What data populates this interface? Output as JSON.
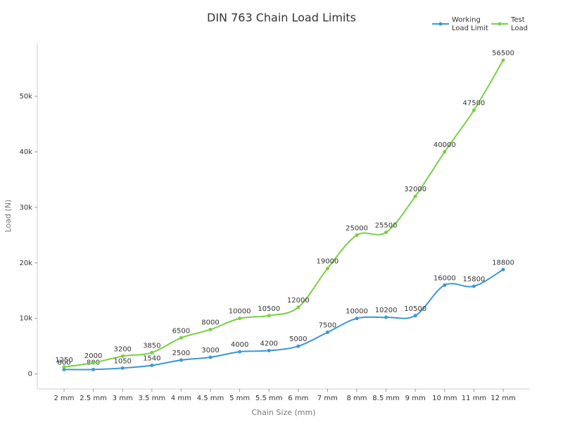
{
  "chart_data": {
    "type": "line",
    "title": "DIN 763 Chain Load Limits",
    "x_label": "Chain Size (mm)",
    "y_label": "Load (N)",
    "categories": [
      "2 mm",
      "2.5 mm",
      "3 mm",
      "3.5 mm",
      "4 mm",
      "4.5 mm",
      "5 mm",
      "5.5 mm",
      "6 mm",
      "7 mm",
      "8 mm",
      "8.5 mm",
      "9 mm",
      "10 mm",
      "11 mm",
      "12 mm"
    ],
    "series": [
      {
        "name": "Working Load Limit",
        "color": "#3d97d6",
        "values": [
          800,
          800,
          1050,
          1540,
          2500,
          3000,
          4000,
          4200,
          5000,
          7500,
          10000,
          10200,
          10500,
          16000,
          15800,
          18800
        ]
      },
      {
        "name": "Test Load",
        "color": "#78d046",
        "values": [
          1250,
          2000,
          3200,
          3850,
          6500,
          8000,
          10000,
          10500,
          12000,
          19000,
          25000,
          25500,
          32000,
          40000,
          47500,
          56500
        ]
      }
    ],
    "ylim": [
      -2700,
      59500
    ],
    "yticks": [
      0,
      {
        "value": 10000,
        "label": "10k"
      },
      {
        "value": 20000,
        "label": "20k"
      },
      {
        "value": 30000,
        "label": "30k"
      },
      {
        "value": 40000,
        "label": "40k"
      },
      {
        "value": 50000,
        "label": "50k"
      }
    ],
    "legend": "top-right"
  }
}
